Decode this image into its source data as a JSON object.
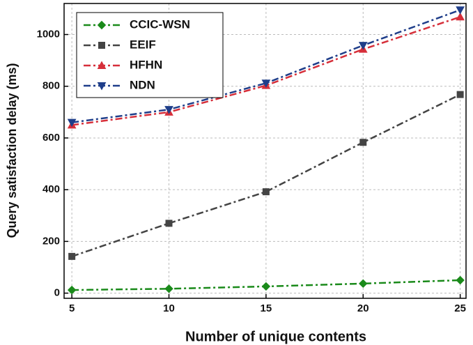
{
  "chart_data": {
    "type": "line",
    "x_label": "Number of unique contents",
    "y_label": "Query satisfaction delay (ms)",
    "x": [
      5,
      10,
      15,
      20,
      25
    ],
    "series": [
      {
        "name": "CCIC-WSN",
        "color": "#1a8a1a",
        "marker": "diamond",
        "values": [
          12,
          17,
          26,
          37,
          50
        ]
      },
      {
        "name": "EEIF",
        "color": "#444444",
        "marker": "square",
        "values": [
          142,
          270,
          392,
          583,
          768
        ]
      },
      {
        "name": "HFHN",
        "color": "#d62f3a",
        "marker": "triangle-up",
        "values": [
          650,
          700,
          803,
          943,
          1068
        ]
      },
      {
        "name": "NDN",
        "color": "#1f3e8a",
        "marker": "triangle-down",
        "values": [
          660,
          710,
          812,
          958,
          1095
        ]
      }
    ],
    "xlim": [
      4.6,
      25.3
    ],
    "xticks": [
      5,
      10,
      15,
      20,
      25
    ],
    "ylim": [
      -20,
      1120
    ],
    "yticks": [
      0,
      200,
      400,
      600,
      800,
      1000
    ],
    "grid": true,
    "legend": "upper left"
  }
}
